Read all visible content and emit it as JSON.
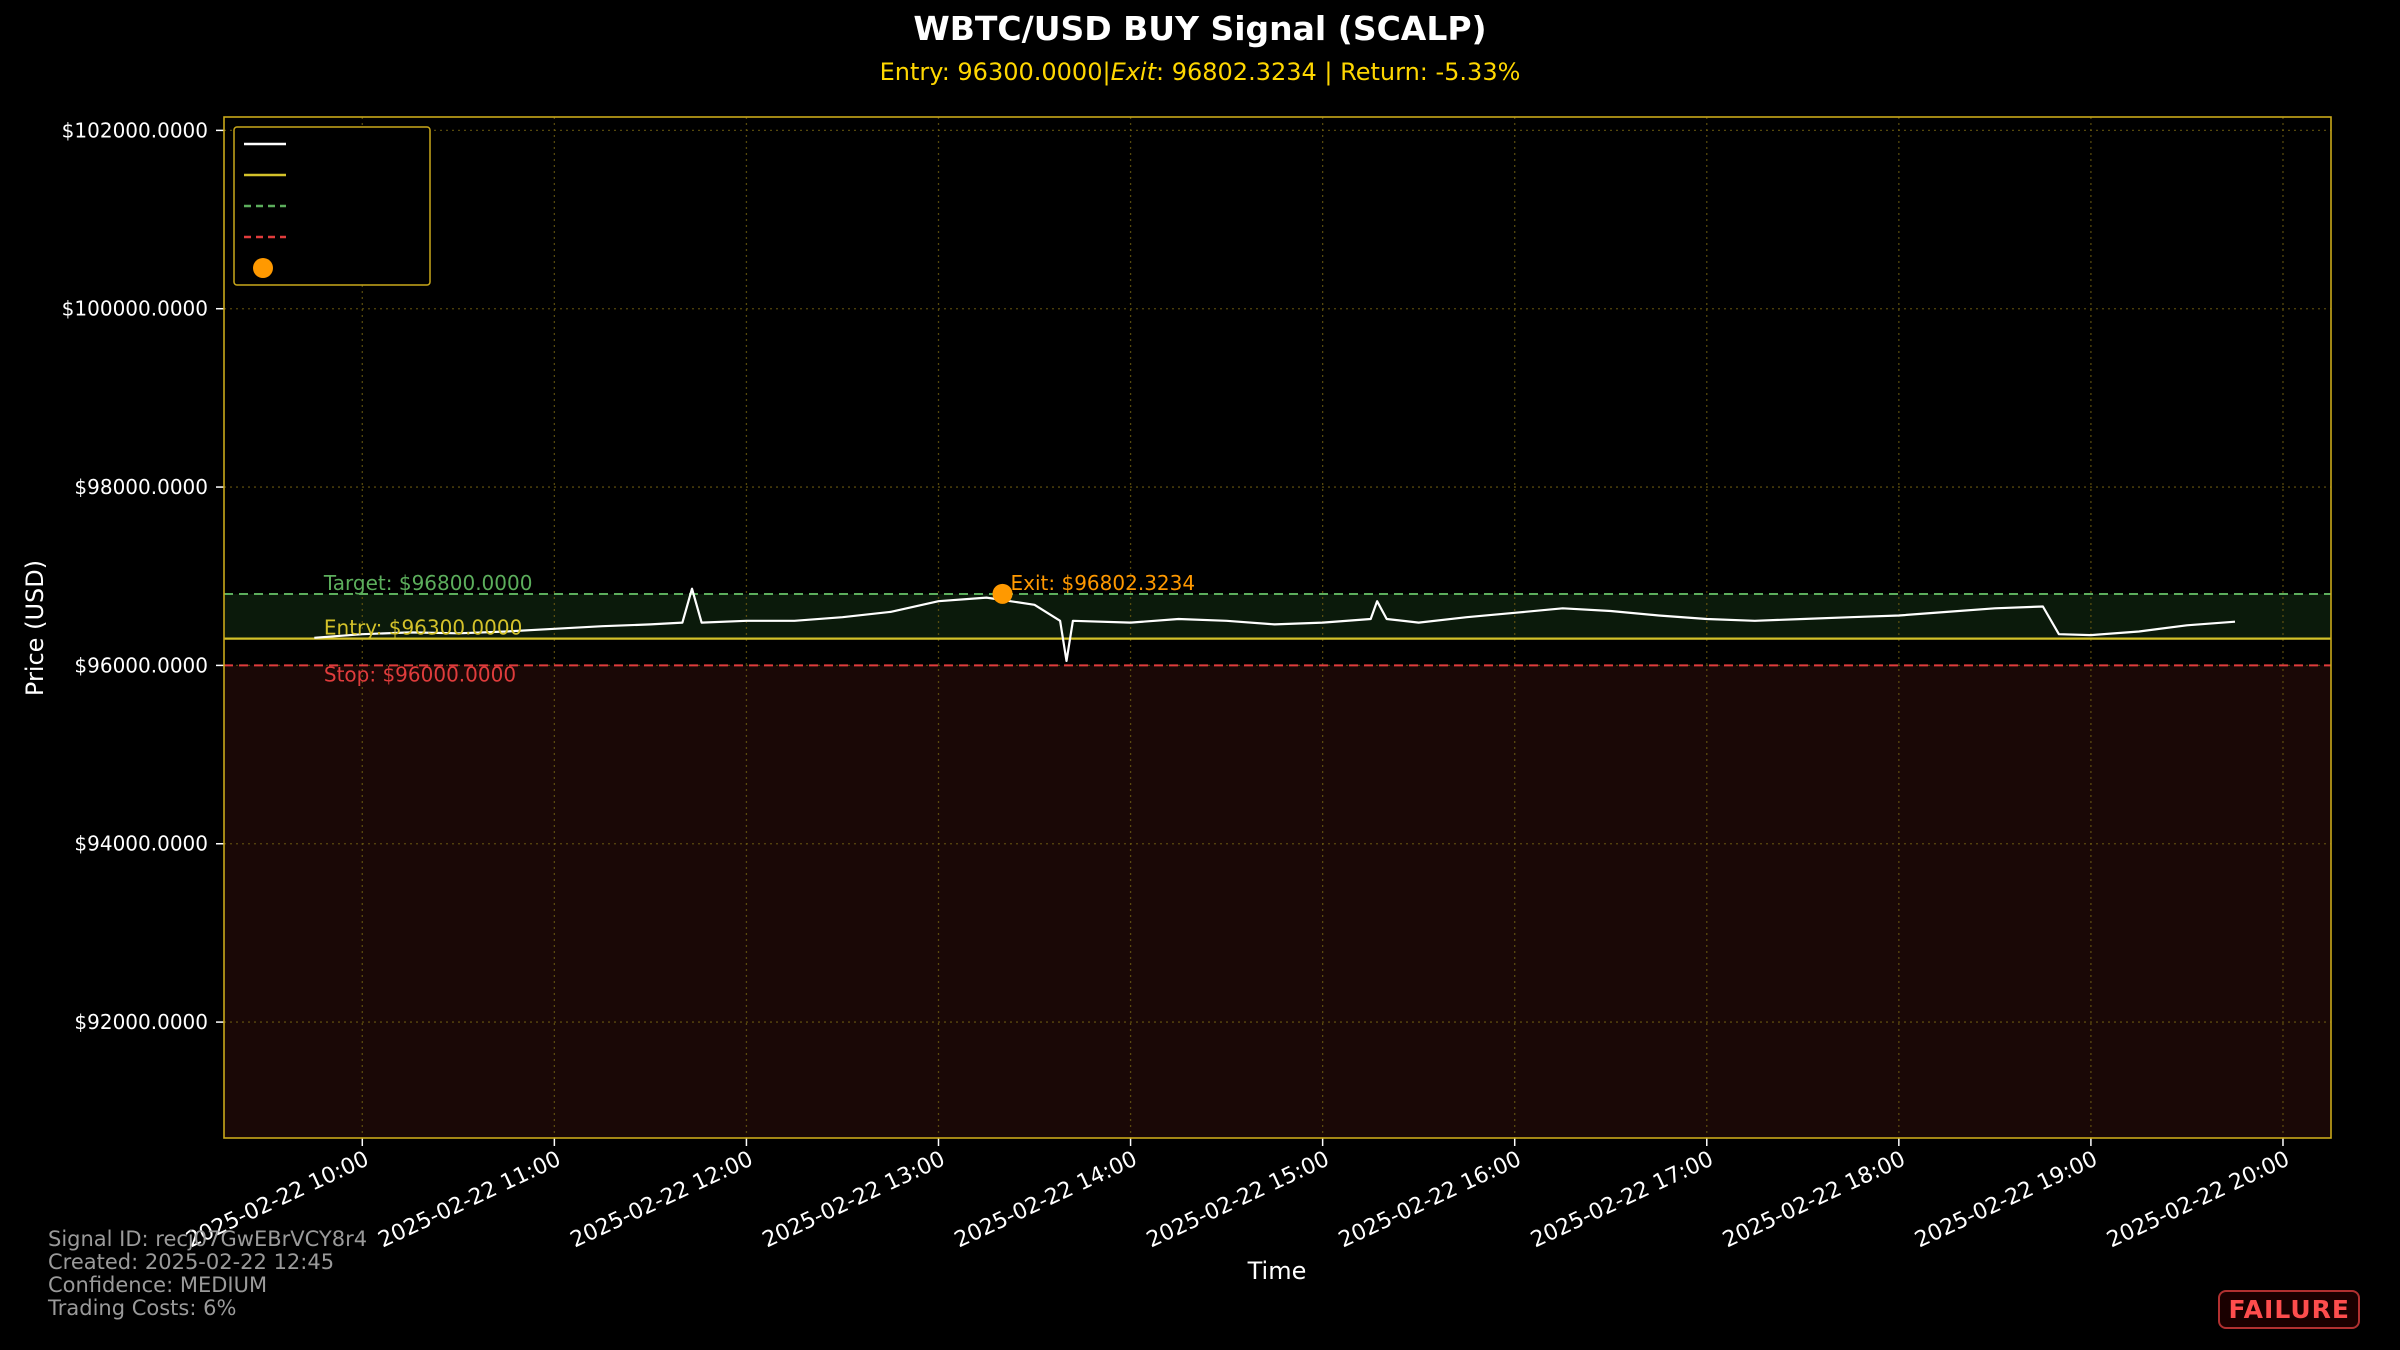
{
  "chart_data": {
    "type": "line",
    "title": "WBTC/USD BUY Signal (SCALP)",
    "subtitle": "Entry: 96300.0000|$Exit$: 96802.3234 | Return: -5.33%",
    "subtitle_parts": {
      "entry": "Entry: 96300.0000",
      "sep": "|",
      "exit_label": "Exit",
      "exit_value": ": 96802.3234",
      "return": " | Return: -5.33%"
    },
    "xlabel": "Time",
    "ylabel": "Price (USD)",
    "xlim_hours": [
      9.28,
      20.25
    ],
    "ylim": [
      90700,
      102150
    ],
    "x_axis_date": "2025-02-22",
    "x_ticks": [
      "2025-02-22 10:00",
      "2025-02-22 11:00",
      "2025-02-22 12:00",
      "2025-02-22 13:00",
      "2025-02-22 14:00",
      "2025-02-22 15:00",
      "2025-02-22 16:00",
      "2025-02-22 17:00",
      "2025-02-22 18:00",
      "2025-02-22 19:00",
      "2025-02-22 20:00"
    ],
    "y_ticks": [
      92000,
      94000,
      96000,
      98000,
      100000,
      102000
    ],
    "y_tick_labels": [
      "$92000.0000",
      "$94000.0000",
      "$96000.0000",
      "$98000.0000",
      "$100000.0000",
      "$102000.0000"
    ],
    "grid": true,
    "legend_placement": "top-left",
    "levels": {
      "entry": {
        "value": 96300,
        "label": "Entry: $96300.0000",
        "color": "#d4c22a"
      },
      "target": {
        "value": 96800,
        "label": "Target: $96800.0000",
        "color": "#5cae5c"
      },
      "stop": {
        "value": 96000,
        "label": "Stop: $96000.0000",
        "color": "#e03c3c"
      }
    },
    "exit_point": {
      "x": "2025-02-22 13:20",
      "y": 96802.3234,
      "label": "Exit: $96802.3234",
      "color": "#ff9900"
    },
    "series": [
      {
        "color": "#ffffff",
        "x": [
          "2025-02-22 09:45",
          "2025-02-22 10:00",
          "2025-02-22 10:15",
          "2025-02-22 10:30",
          "2025-02-22 10:45",
          "2025-02-22 11:00",
          "2025-02-22 11:15",
          "2025-02-22 11:30",
          "2025-02-22 11:40",
          "2025-02-22 11:43",
          "2025-02-22 11:46",
          "2025-02-22 12:00",
          "2025-02-22 12:15",
          "2025-02-22 12:30",
          "2025-02-22 12:45",
          "2025-02-22 13:00",
          "2025-02-22 13:15",
          "2025-02-22 13:30",
          "2025-02-22 13:38",
          "2025-02-22 13:40",
          "2025-02-22 13:42",
          "2025-02-22 14:00",
          "2025-02-22 14:15",
          "2025-02-22 14:30",
          "2025-02-22 14:45",
          "2025-02-22 15:00",
          "2025-02-22 15:15",
          "2025-02-22 15:17",
          "2025-02-22 15:20",
          "2025-02-22 15:30",
          "2025-02-22 15:45",
          "2025-02-22 16:00",
          "2025-02-22 16:15",
          "2025-02-22 16:30",
          "2025-02-22 16:45",
          "2025-02-22 17:00",
          "2025-02-22 17:15",
          "2025-02-22 17:30",
          "2025-02-22 17:45",
          "2025-02-22 18:00",
          "2025-02-22 18:15",
          "2025-02-22 18:30",
          "2025-02-22 18:45",
          "2025-02-22 18:50",
          "2025-02-22 19:00",
          "2025-02-22 19:15",
          "2025-02-22 19:30",
          "2025-02-22 19:45"
        ],
        "values": [
          96310,
          96350,
          96370,
          96360,
          96380,
          96410,
          96440,
          96460,
          96480,
          96860,
          96480,
          96500,
          96500,
          96540,
          96600,
          96720,
          96760,
          96680,
          96500,
          96050,
          96500,
          96480,
          96520,
          96500,
          96460,
          96480,
          96520,
          96720,
          96520,
          96480,
          96540,
          96590,
          96640,
          96610,
          96560,
          96520,
          96500,
          96520,
          96540,
          96560,
          96600,
          96640,
          96660,
          96350,
          96340,
          96380,
          96450,
          96490
        ]
      }
    ]
  },
  "info": {
    "signal_id": "Signal ID: recj07GwEBrVCY8r4",
    "created": "Created: 2025-02-22 12:45",
    "confidence": "Confidence: MEDIUM",
    "trading_costs": "Trading Costs: 6%"
  },
  "status_badge": "FAILURE"
}
